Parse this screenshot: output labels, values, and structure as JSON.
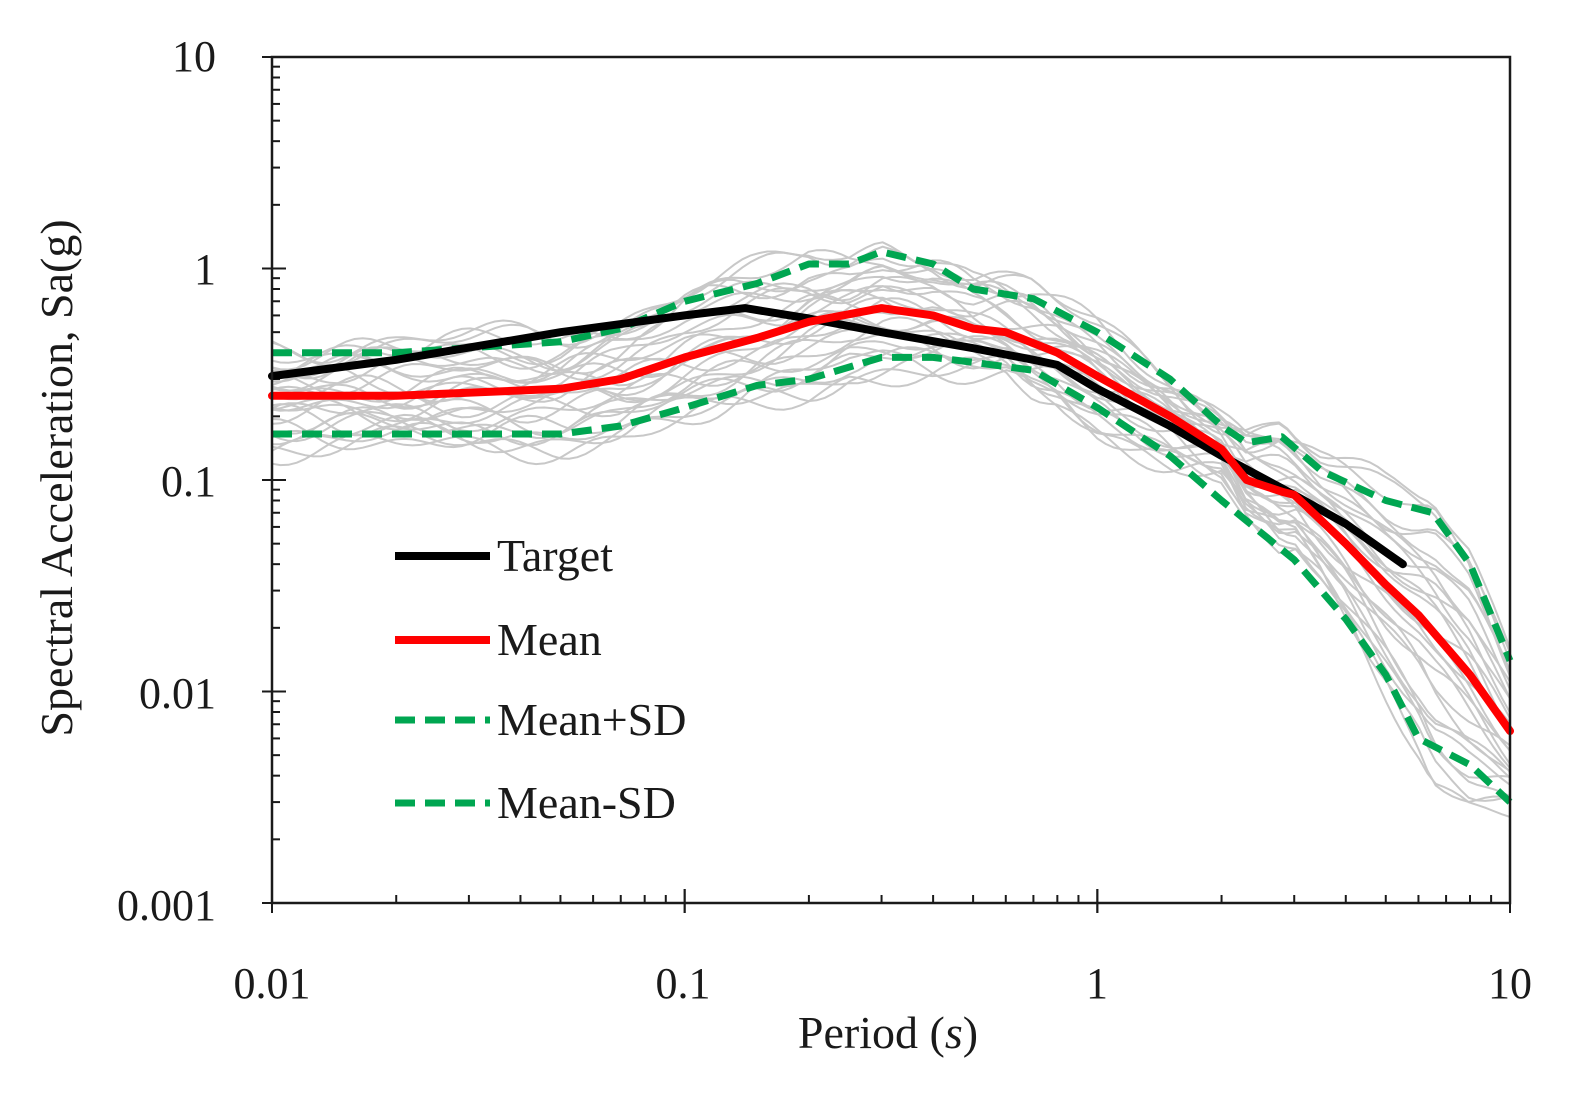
{
  "chart_data": {
    "type": "line",
    "xscale": "log",
    "yscale": "log",
    "xlim": [
      0.01,
      10
    ],
    "ylim": [
      0.001,
      10
    ],
    "x_ticks": [
      {
        "value": 0.01,
        "label": "0.01"
      },
      {
        "value": 0.1,
        "label": "0.1"
      },
      {
        "value": 1,
        "label": "1"
      },
      {
        "value": 10,
        "label": "10"
      }
    ],
    "y_ticks": [
      {
        "value": 0.001,
        "label": "0.001"
      },
      {
        "value": 0.01,
        "label": "0.01"
      },
      {
        "value": 0.1,
        "label": "0.1"
      },
      {
        "value": 1,
        "label": "1"
      },
      {
        "value": 10,
        "label": "10"
      }
    ],
    "xlabel": {
      "text": "Period (",
      "italic": "s",
      "close": ")"
    },
    "ylabel": "Spectral Acceleration, Sa(g)",
    "legend_position": "lower-left",
    "colors": {
      "target": "#000000",
      "mean": "#ff0000",
      "sd": "#00a651",
      "records": "#c8c8c8"
    },
    "series": [
      {
        "key": "target",
        "name": "Target",
        "style": "solid",
        "points": [
          [
            0.01,
            0.31
          ],
          [
            0.02,
            0.37
          ],
          [
            0.05,
            0.5
          ],
          [
            0.1,
            0.6
          ],
          [
            0.14,
            0.65
          ],
          [
            0.2,
            0.58
          ],
          [
            0.3,
            0.5
          ],
          [
            0.5,
            0.42
          ],
          [
            0.7,
            0.37
          ],
          [
            0.8,
            0.35
          ],
          [
            1,
            0.27
          ],
          [
            1.5,
            0.18
          ],
          [
            2,
            0.13
          ],
          [
            3,
            0.085
          ],
          [
            4,
            0.062
          ],
          [
            5.5,
            0.04
          ]
        ]
      },
      {
        "key": "mean",
        "name": "Mean",
        "style": "solid",
        "points": [
          [
            0.01,
            0.25
          ],
          [
            0.02,
            0.25
          ],
          [
            0.05,
            0.27
          ],
          [
            0.07,
            0.3
          ],
          [
            0.1,
            0.38
          ],
          [
            0.15,
            0.47
          ],
          [
            0.2,
            0.56
          ],
          [
            0.3,
            0.65
          ],
          [
            0.4,
            0.6
          ],
          [
            0.5,
            0.52
          ],
          [
            0.6,
            0.5
          ],
          [
            0.8,
            0.4
          ],
          [
            1,
            0.31
          ],
          [
            1.5,
            0.2
          ],
          [
            2,
            0.14
          ],
          [
            2.3,
            0.1
          ],
          [
            2.8,
            0.088
          ],
          [
            3,
            0.085
          ],
          [
            4,
            0.05
          ],
          [
            5,
            0.032
          ],
          [
            6,
            0.023
          ],
          [
            8,
            0.012
          ],
          [
            10,
            0.0065
          ]
        ]
      },
      {
        "key": "mean_plus_sd",
        "name": "Mean+SD",
        "style": "dashed",
        "points": [
          [
            0.01,
            0.4
          ],
          [
            0.02,
            0.4
          ],
          [
            0.05,
            0.45
          ],
          [
            0.07,
            0.52
          ],
          [
            0.1,
            0.7
          ],
          [
            0.15,
            0.85
          ],
          [
            0.2,
            1.05
          ],
          [
            0.25,
            1.05
          ],
          [
            0.3,
            1.2
          ],
          [
            0.4,
            1.05
          ],
          [
            0.5,
            0.8
          ],
          [
            0.7,
            0.72
          ],
          [
            1,
            0.5
          ],
          [
            1.5,
            0.3
          ],
          [
            2,
            0.18
          ],
          [
            2.3,
            0.15
          ],
          [
            2.8,
            0.16
          ],
          [
            3.5,
            0.11
          ],
          [
            5,
            0.08
          ],
          [
            6.5,
            0.07
          ],
          [
            8,
            0.04
          ],
          [
            10,
            0.014
          ]
        ]
      },
      {
        "key": "mean_minus_sd",
        "name": "Mean-SD",
        "style": "dashed",
        "points": [
          [
            0.01,
            0.165
          ],
          [
            0.02,
            0.165
          ],
          [
            0.05,
            0.165
          ],
          [
            0.07,
            0.18
          ],
          [
            0.1,
            0.22
          ],
          [
            0.15,
            0.28
          ],
          [
            0.2,
            0.3
          ],
          [
            0.3,
            0.38
          ],
          [
            0.4,
            0.38
          ],
          [
            0.5,
            0.36
          ],
          [
            0.7,
            0.33
          ],
          [
            1,
            0.22
          ],
          [
            1.5,
            0.13
          ],
          [
            2,
            0.08
          ],
          [
            3,
            0.042
          ],
          [
            4,
            0.022
          ],
          [
            5,
            0.012
          ],
          [
            6,
            0.006
          ],
          [
            8,
            0.0045
          ],
          [
            10,
            0.003
          ]
        ]
      }
    ]
  }
}
